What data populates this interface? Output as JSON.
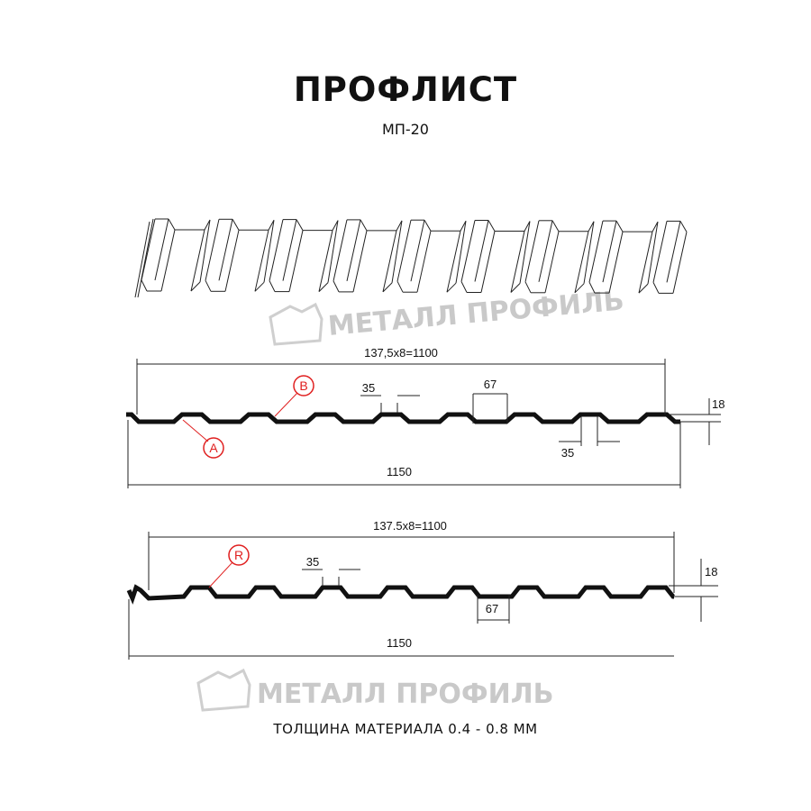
{
  "header": {
    "title": "ПРОФЛИСТ",
    "subtitle": "МП-20"
  },
  "watermark": "МЕТАЛЛ ПРОФИЛЬ",
  "profile_a": {
    "top_dimension": "137,5x8=1100",
    "total_dimension": "1150",
    "crest_width": "35",
    "crest_width_2": "35",
    "valley_width": "67",
    "height": "18",
    "marker_a": "A",
    "marker_b": "B"
  },
  "profile_r": {
    "top_dimension": "137.5x8=1100",
    "total_dimension": "1150",
    "crest_width": "35",
    "valley_width": "67",
    "height": "18",
    "marker_r": "R"
  },
  "footer": {
    "thickness": "ТОЛЩИНА МАТЕРИАЛА 0.4 - 0.8 ММ"
  },
  "colors": {
    "line": "#111111",
    "marker": "#e02020",
    "watermark": "#c9c9c9"
  }
}
